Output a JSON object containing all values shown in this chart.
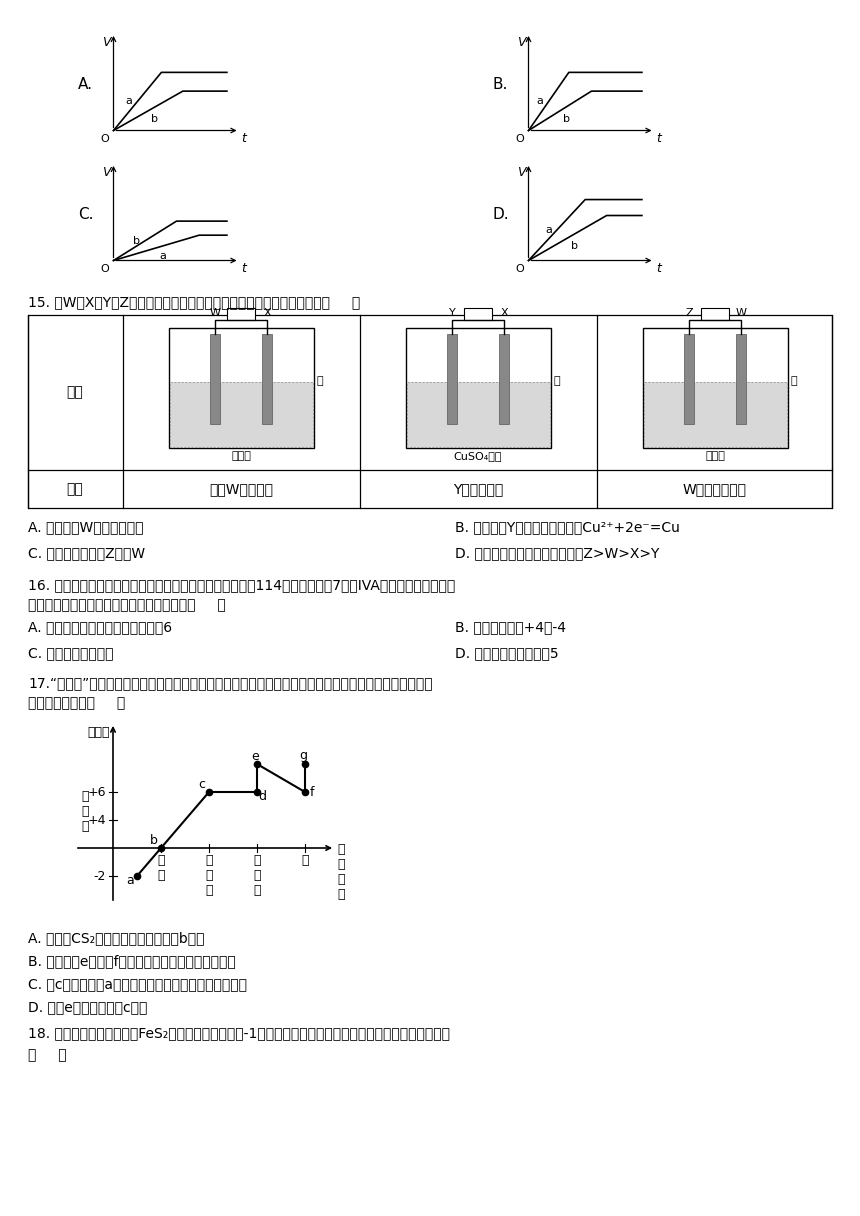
{
  "bg_color": "#ffffff",
  "q15_text": "15. 由W、X、Y、Z四种金属按下列装置进行实验。下列说法不正确的是（     ）",
  "q15_opts": [
    "A. 装置甲中W作原电池负极",
    "B. 装置乙中Y电极上的反应式为Cu²⁺+2e⁻=Cu",
    "C. 装置丙中电流由Z流向W",
    "D. 四种金属的活动性强弱顺序为Z>W>X>Y"
  ],
  "q16_line1": "16. 科学家根据元素周期律和原子结构理论预测原子序数为114的元素位于第7周期IVA族，称为类銅元素。",
  "q16_line2": "下面关于它的原子结构和性质预测正确的是（     ）",
  "q16_opts": [
    "A. 类銅元素原子的最外层电子数为6",
    "B. 其常见价态为+4、-4",
    "C. 它的金属性比銅强",
    "D. 它的原子半径比銅小5"
  ],
  "q17_line1": "17.“价类图”是元素化合物学习的重要工具，部分含硫物质的分类与相应硫元素的化合价关系如图所示。下",
  "q17_line2": "列说法错误的是（     ）",
  "q17_opts": [
    "A. 可以用CS₂来洗涂试管内壁附着的b物质",
    "B. 将足量的e加入到f的溶液中，可以闻到臭鸡蛋气味",
    "C. 将c通入到含有a的溶液中，可以生成一种淡黄色固体",
    "D. 可用e的浓溶液干燥c气体"
  ],
  "q18_line1": "18. 以黄铁矿（主要成分为FeS₂，其中硫的化合价为-1价）生产硫酸的工艺流程如图，下列说法不正确的是",
  "q18_line2": "（     ）"
}
